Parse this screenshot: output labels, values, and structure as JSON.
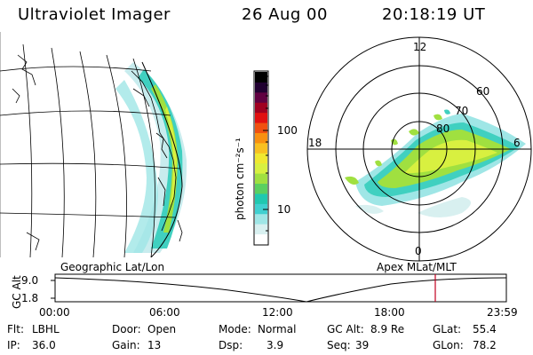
{
  "header": {
    "instrument": "Ultraviolet Imager",
    "date": "26 Aug 00",
    "time": "20:18:19 UT"
  },
  "colorbar": {
    "unit_label": "photon cm⁻²s⁻¹",
    "ticks": [
      "100",
      "10"
    ],
    "colors": [
      "#ffffff",
      "#d8f0f0",
      "#9fe6e6",
      "#40d0d0",
      "#20c8b0",
      "#5ad060",
      "#a0e040",
      "#d8f040",
      "#f0e830",
      "#f8c020",
      "#f89010",
      "#f05010",
      "#e01010",
      "#a00020",
      "#600040",
      "#200030",
      "#000000"
    ]
  },
  "map_left": {
    "caption": "Geographic Lat/Lon"
  },
  "map_right": {
    "caption": "Apex MLat/MLT",
    "mlt_labels": {
      "top": "12",
      "right": "6",
      "bottom": "0",
      "left": "18"
    },
    "lat_labels": [
      "60",
      "70",
      "80"
    ]
  },
  "altitude_plot": {
    "axis_label": "GC Alt",
    "y_ticks": [
      "9.0",
      "1.8"
    ],
    "x_ticks": [
      "00:00",
      "06:00",
      "12:00",
      "18:00",
      "23:59"
    ],
    "marker_color": "#c00020"
  },
  "status": {
    "row1": [
      {
        "label": "Flt:",
        "value": "LBHL"
      },
      {
        "label": "Door:",
        "value": "Open"
      },
      {
        "label": "Mode:",
        "value": "Normal"
      },
      {
        "label": "GC Alt:",
        "value": "8.9 Re"
      },
      {
        "label": "GLat:",
        "value": "55.4"
      }
    ],
    "row2": [
      {
        "label": "IP:",
        "value": "36.0"
      },
      {
        "label": "Gain:",
        "value": "13"
      },
      {
        "label": "Dsp:",
        "value": "3.9"
      },
      {
        "label": "Seq:",
        "value": "39"
      },
      {
        "label": "GLon:",
        "value": "78.2"
      }
    ]
  }
}
